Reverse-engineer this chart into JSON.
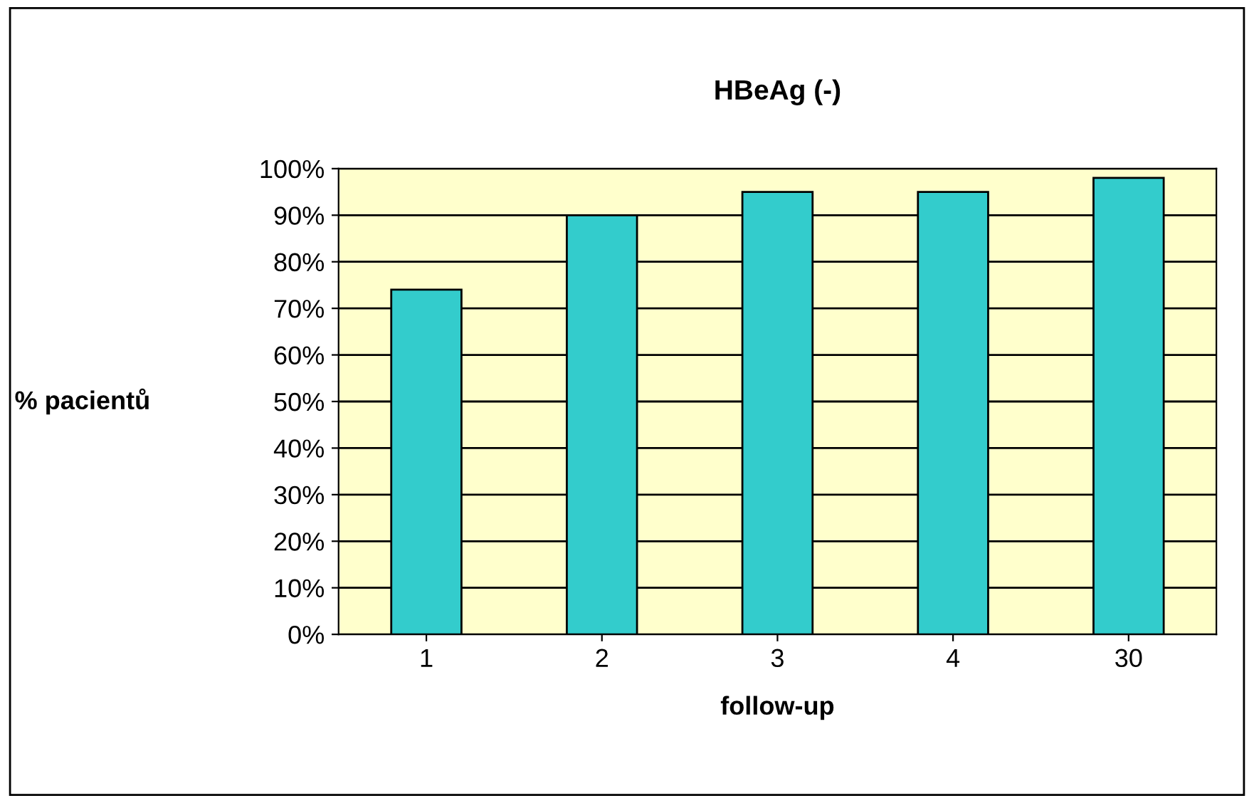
{
  "chart_data": {
    "type": "bar",
    "title": "HBeAg (-)",
    "xlabel": "follow-up",
    "ylabel": "% pacientů",
    "categories": [
      "1",
      "2",
      "3",
      "4",
      "30"
    ],
    "values": [
      74,
      90,
      95,
      95,
      98
    ],
    "color": "#33cccc",
    "ylim": [
      0,
      100
    ],
    "yticks": [
      {
        "value": 0,
        "label": "0%"
      },
      {
        "value": 10,
        "label": "10%"
      },
      {
        "value": 20,
        "label": "20%"
      },
      {
        "value": 30,
        "label": "30%"
      },
      {
        "value": 40,
        "label": "40%"
      },
      {
        "value": 50,
        "label": "50%"
      },
      {
        "value": 60,
        "label": "60%"
      },
      {
        "value": 70,
        "label": "70%"
      },
      {
        "value": 80,
        "label": "80%"
      },
      {
        "value": 90,
        "label": "90%"
      },
      {
        "value": 100,
        "label": "100%"
      }
    ],
    "grid": "y",
    "legend": false
  }
}
